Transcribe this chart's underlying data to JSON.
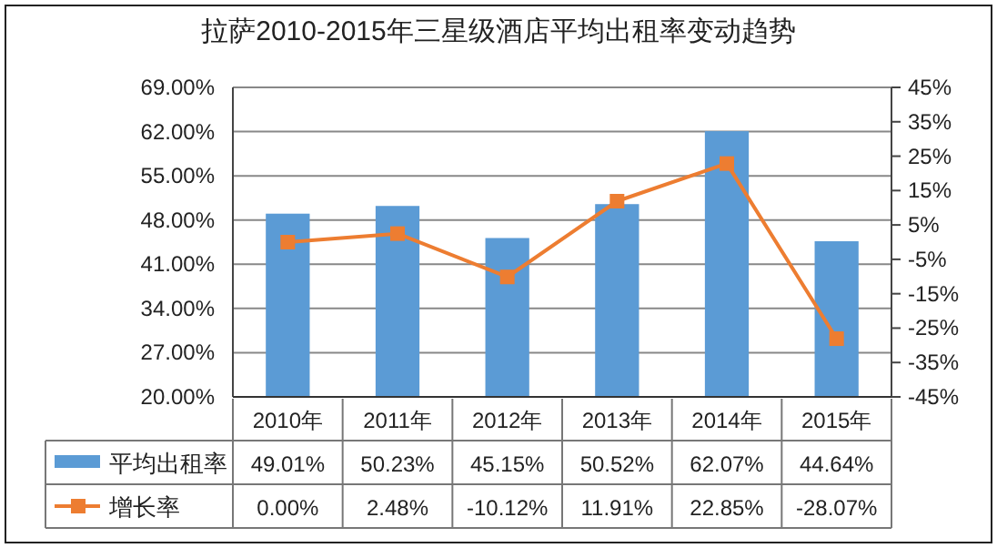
{
  "chart_data": {
    "type": "bar",
    "title": "拉萨2010-2015年三星级酒店平均出租率变动趋势",
    "categories": [
      "2010年",
      "2011年",
      "2012年",
      "2013年",
      "2014年",
      "2015年"
    ],
    "series": [
      {
        "name": "平均出租率",
        "color": "#5b9bd5",
        "values": [
          49.01,
          50.23,
          45.15,
          50.52,
          62.07,
          44.64
        ],
        "value_labels": [
          "49.01%",
          "50.23%",
          "45.15%",
          "50.52%",
          "62.07%",
          "44.64%"
        ]
      },
      {
        "name": "增长率",
        "type": "line",
        "axis": "y2",
        "color": "#ed7d31",
        "values": [
          0.0,
          2.48,
          -10.12,
          11.91,
          22.85,
          -28.07
        ],
        "value_labels": [
          "0.00%",
          "2.48%",
          "-10.12%",
          "11.91%",
          "22.85%",
          "-28.07%"
        ]
      }
    ],
    "ylim": [
      20,
      69
    ],
    "yticks": [
      {
        "value": 20,
        "label": "20.00%"
      },
      {
        "value": 27,
        "label": "27.00%"
      },
      {
        "value": 34,
        "label": "34.00%"
      },
      {
        "value": 41,
        "label": "41.00%"
      },
      {
        "value": 48,
        "label": "48.00%"
      },
      {
        "value": 55,
        "label": "55.00%"
      },
      {
        "value": 62,
        "label": "62.00%"
      },
      {
        "value": 69,
        "label": "69.00%"
      }
    ],
    "y2lim": [
      -45,
      45
    ],
    "y2ticks": [
      {
        "value": -45,
        "label": "-45%"
      },
      {
        "value": -35,
        "label": "-35%"
      },
      {
        "value": -25,
        "label": "-25%"
      },
      {
        "value": -15,
        "label": "-15%"
      },
      {
        "value": -5,
        "label": "-5%"
      },
      {
        "value": 5,
        "label": "5%"
      },
      {
        "value": 15,
        "label": "15%"
      },
      {
        "value": 25,
        "label": "25%"
      },
      {
        "value": 35,
        "label": "35%"
      },
      {
        "value": 45,
        "label": "45%"
      }
    ],
    "grid": "y",
    "legend": "bottom",
    "marker": "square",
    "line_style": "solid"
  }
}
